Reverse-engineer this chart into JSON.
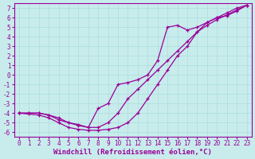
{
  "xlabel": "Windchill (Refroidissement éolien,°C)",
  "xlim": [
    -0.5,
    23.5
  ],
  "ylim": [
    -6.5,
    7.5
  ],
  "bg_color": "#c8ecec",
  "line_color": "#990099",
  "grid_color": "#aadddd",
  "xticks": [
    0,
    1,
    2,
    3,
    4,
    5,
    6,
    7,
    8,
    9,
    10,
    11,
    12,
    13,
    14,
    15,
    16,
    17,
    18,
    19,
    20,
    21,
    22,
    23
  ],
  "yticks": [
    -6,
    -5,
    -4,
    -3,
    -2,
    -1,
    0,
    1,
    2,
    3,
    4,
    5,
    6,
    7
  ],
  "line1_x": [
    0,
    1,
    2,
    3,
    4,
    5,
    6,
    7,
    8,
    9,
    10,
    11,
    12,
    13,
    14,
    15,
    16,
    17,
    18,
    19,
    20,
    21,
    22,
    23
  ],
  "line1_y": [
    -4.0,
    -4.1,
    -4.2,
    -4.5,
    -5.0,
    -5.5,
    -5.7,
    -5.8,
    -5.8,
    -5.7,
    -5.5,
    -5.0,
    -4.0,
    -2.5,
    -1.0,
    0.5,
    2.0,
    3.0,
    4.5,
    5.5,
    6.0,
    6.5,
    7.0,
    7.3
  ],
  "line2_x": [
    0,
    1,
    2,
    3,
    4,
    5,
    6,
    7,
    8,
    9,
    10,
    11,
    12,
    13,
    14,
    15,
    16,
    17,
    18,
    19,
    20,
    21,
    22,
    23
  ],
  "line2_y": [
    -4.0,
    -4.0,
    -4.0,
    -4.2,
    -4.7,
    -5.0,
    -5.3,
    -5.5,
    -5.5,
    -5.0,
    -4.0,
    -2.5,
    -1.5,
    -0.5,
    0.5,
    1.5,
    2.5,
    3.5,
    4.5,
    5.2,
    5.8,
    6.3,
    6.8,
    7.3
  ],
  "line3_x": [
    0,
    1,
    2,
    3,
    4,
    5,
    6,
    7,
    8,
    9,
    10,
    11,
    12,
    13,
    14,
    15,
    16,
    17,
    18,
    19,
    20,
    21,
    22,
    23
  ],
  "line3_y": [
    -4.0,
    -4.0,
    -4.0,
    -4.2,
    -4.5,
    -5.0,
    -5.2,
    -5.5,
    -3.5,
    -3.0,
    -1.0,
    -0.8,
    -0.5,
    0.0,
    1.5,
    5.0,
    5.2,
    4.7,
    5.0,
    5.5,
    6.0,
    6.2,
    6.7,
    7.3
  ],
  "marker": "+",
  "markersize": 3,
  "linewidth": 0.9,
  "tick_fontsize": 5.5,
  "xlabel_fontsize": 6.5
}
